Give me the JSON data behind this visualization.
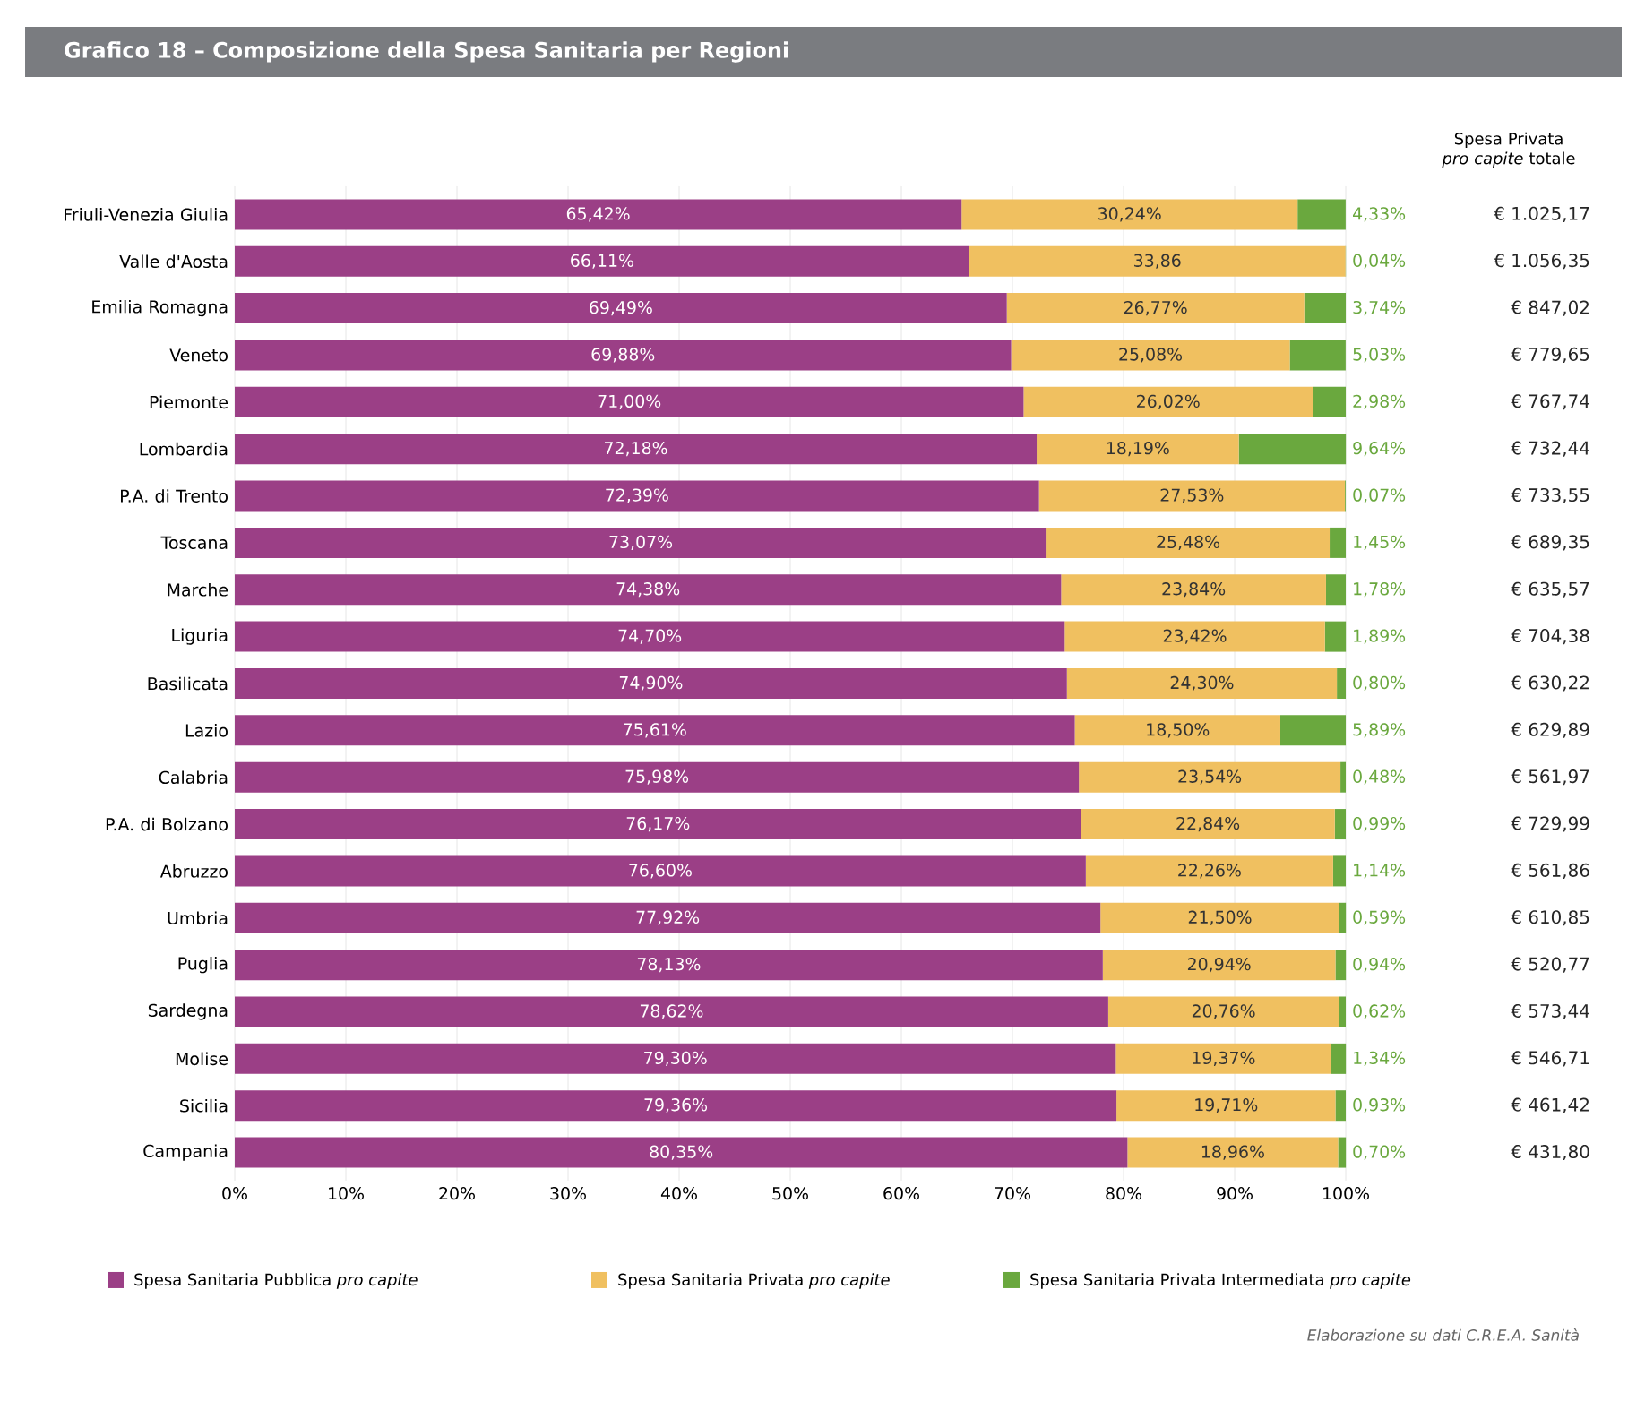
{
  "chart_data": {
    "type": "bar",
    "orientation": "horizontal",
    "stacked": true,
    "title": "Grafico 18 – Composizione della Spesa Sanitaria per Regioni",
    "categories": [
      "Friuli-Venezia Giulia",
      "Valle d'Aosta",
      "Emilia Romagna",
      "Veneto",
      "Piemonte",
      "Lombardia",
      "P.A. di Trento",
      "Toscana",
      "Marche",
      "Liguria",
      "Basilicata",
      "Lazio",
      "Calabria",
      "P.A. di Bolzano",
      "Abruzzo",
      "Umbria",
      "Puglia",
      "Sardegna",
      "Molise",
      "Sicilia",
      "Campania"
    ],
    "series": [
      {
        "name": "Spesa Sanitaria Pubblica *pro capite*",
        "color": "#9b3f86",
        "values": [
          65.42,
          66.11,
          69.49,
          69.88,
          71.0,
          72.18,
          72.39,
          73.07,
          74.38,
          74.7,
          74.9,
          75.61,
          75.98,
          76.17,
          76.6,
          77.92,
          78.13,
          78.62,
          79.3,
          79.36,
          80.35
        ],
        "value_labels": [
          "65,42%",
          "66,11%",
          "69,49%",
          "69,88%",
          "71,00%",
          "72,18%",
          "72,39%",
          "73,07%",
          "74,38%",
          "74,70%",
          "74,90%",
          "75,61%",
          "75,98%",
          "76,17%",
          "76,60%",
          "77,92%",
          "78,13%",
          "78,62%",
          "79,30%",
          "79,36%",
          "80,35%"
        ]
      },
      {
        "name": "Spesa Sanitaria Privata *pro capite*",
        "color": "#f0c060",
        "values": [
          30.24,
          33.86,
          26.77,
          25.08,
          26.02,
          18.19,
          27.53,
          25.48,
          23.84,
          23.42,
          24.3,
          18.5,
          23.54,
          22.84,
          22.26,
          21.5,
          20.94,
          20.76,
          19.37,
          19.71,
          18.96
        ],
        "value_labels": [
          "30,24%",
          "33,86",
          "26,77%",
          "25,08%",
          "26,02%",
          "18,19%",
          "27,53%",
          "25,48%",
          "23,84%",
          "23,42%",
          "24,30%",
          "18,50%",
          "23,54%",
          "22,84%",
          "22,26%",
          "21,50%",
          "20,94%",
          "20,76%",
          "19,37%",
          "19,71%",
          "18,96%"
        ]
      },
      {
        "name": "Spesa Sanitaria Privata Intermediata *pro capite*",
        "color": "#6aa83e",
        "values": [
          4.33,
          0.04,
          3.74,
          5.03,
          2.98,
          9.64,
          0.07,
          1.45,
          1.78,
          1.89,
          0.8,
          5.89,
          0.48,
          0.99,
          1.14,
          0.59,
          0.94,
          0.62,
          1.34,
          0.93,
          0.7
        ],
        "value_labels": [
          "4,33%",
          "0,04%",
          "3,74%",
          "5,03%",
          "2,98%",
          "9,64%",
          "0,07%",
          "1,45%",
          "1,78%",
          "1,89%",
          "0,80%",
          "5,89%",
          "0,48%",
          "0,99%",
          "1,14%",
          "0,59%",
          "0,94%",
          "0,62%",
          "1,34%",
          "0,93%",
          "0,70%"
        ]
      }
    ],
    "xlim": [
      0,
      100
    ],
    "xticks": [
      {
        "value": 0,
        "label": "0%"
      },
      {
        "value": 10,
        "label": "10%"
      },
      {
        "value": 20,
        "label": "20%"
      },
      {
        "value": 30,
        "label": "30%"
      },
      {
        "value": 40,
        "label": "40%"
      },
      {
        "value": 50,
        "label": "50%"
      },
      {
        "value": 60,
        "label": "60%"
      },
      {
        "value": 70,
        "label": "70%"
      },
      {
        "value": 80,
        "label": "80%"
      },
      {
        "value": 90,
        "label": "90%"
      },
      {
        "value": 100,
        "label": "100%"
      }
    ],
    "grid": "x",
    "legend": "bottom",
    "annotations": [
      "Spesa Privata *pro capite* totale",
      "€ 1.025,17",
      "€ 1.056,35",
      "€ 847,02",
      "€ 779,65",
      "€ 767,74",
      "€ 732,44",
      "€ 733,55",
      "€ 689,35",
      "€ 635,57",
      "€ 704,38",
      "€ 630,22",
      "€ 629,89",
      "€ 561,97",
      "€ 729,99",
      "€ 561,86",
      "€ 610,85",
      "€ 520,77",
      "€ 573,44",
      "€ 546,71",
      "€ 461,42",
      "€ 431,80",
      "Elaborazione su dati C.R.E.A. Sanità"
    ]
  }
}
